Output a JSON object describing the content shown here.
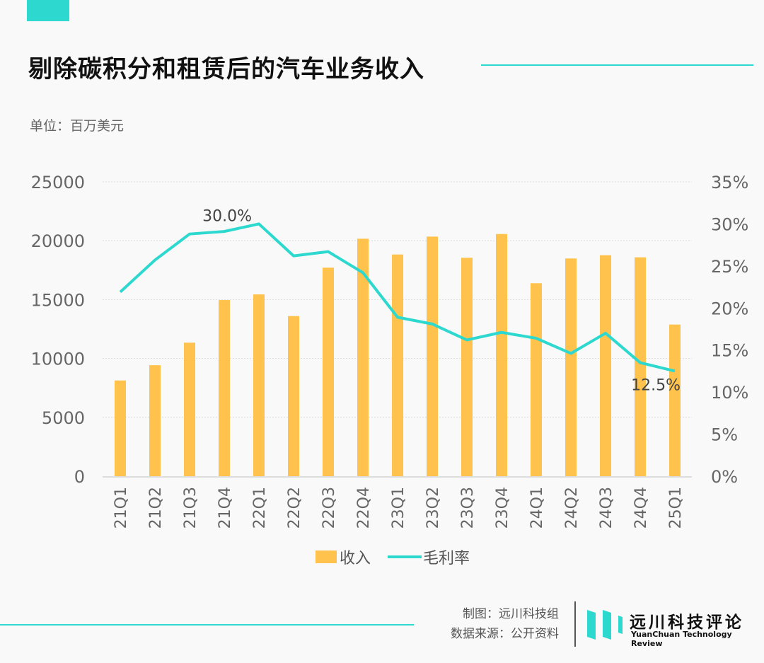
{
  "title": "剔除碳积分和租赁后的汽车业务收入",
  "unit": "单位：百万美元",
  "footer": {
    "made_by": "制图：远川科技组",
    "source": "数据来源：公开资料",
    "logo_cn": "远川科技评论",
    "logo_en": "YuanChuan Technology Review"
  },
  "colors": {
    "accent": "#2dd8cf",
    "bar": "#ffc34d"
  },
  "chart_data": {
    "type": "bar+line",
    "categories": [
      "21Q1",
      "21Q2",
      "21Q3",
      "21Q4",
      "22Q1",
      "22Q2",
      "22Q3",
      "22Q4",
      "23Q1",
      "23Q2",
      "23Q3",
      "23Q4",
      "24Q1",
      "24Q2",
      "24Q3",
      "24Q4",
      "25Q1"
    ],
    "series": [
      {
        "name": "收入",
        "type": "bar",
        "axis": "left",
        "values": [
          8130,
          9430,
          11340,
          14960,
          15440,
          13600,
          17710,
          20170,
          18830,
          20350,
          18550,
          20570,
          16390,
          18490,
          18770,
          18590,
          12880
        ]
      },
      {
        "name": "毛利率",
        "type": "line",
        "axis": "right",
        "values": [
          21.9,
          25.7,
          28.8,
          29.1,
          30.0,
          26.2,
          26.7,
          24.2,
          18.9,
          18.1,
          16.2,
          17.1,
          16.4,
          14.6,
          17.0,
          13.5,
          12.5
        ]
      }
    ],
    "left_axis": {
      "ylim": [
        0,
        25000
      ],
      "ticks": [
        "0",
        "5000",
        "10000",
        "15000",
        "20000",
        "25000"
      ]
    },
    "right_axis": {
      "ylim": [
        0,
        35
      ],
      "ticks": [
        "0%",
        "5%",
        "10%",
        "15%",
        "20%",
        "25%",
        "30%",
        "35%"
      ]
    },
    "annotations": [
      {
        "category": "22Q1",
        "text": "30.0%"
      },
      {
        "category": "25Q1",
        "text": "12.5%"
      }
    ],
    "grid": true,
    "legend": "bottom"
  }
}
